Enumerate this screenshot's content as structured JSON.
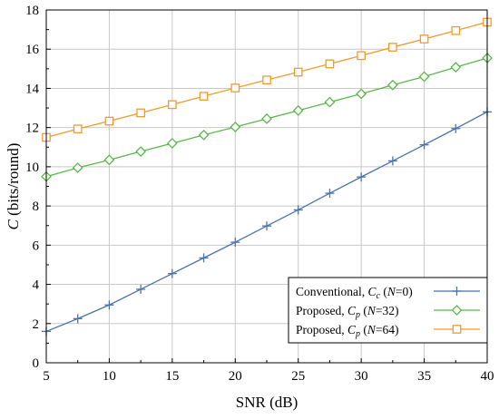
{
  "chart_data": {
    "type": "line",
    "title": "",
    "xlabel": "SNR (dB)",
    "ylabel": {
      "italic": "C",
      "rest": " (bits/round)"
    },
    "xlim": [
      5,
      40
    ],
    "ylim": [
      0,
      18
    ],
    "xticks": [
      "5",
      "10",
      "15",
      "20",
      "25",
      "30",
      "35",
      "40"
    ],
    "yticks": [
      "0",
      "2",
      "4",
      "6",
      "8",
      "10",
      "12",
      "14",
      "16",
      "18"
    ],
    "grid": true,
    "legend_position": "bottom-right",
    "x": [
      5,
      7.5,
      10,
      12.5,
      15,
      17.5,
      20,
      22.5,
      25,
      27.5,
      30,
      32.5,
      35,
      37.5,
      40
    ],
    "series": [
      {
        "name": "Conventional, C_c (N=0)",
        "legend": {
          "prefix": "Conventional, ",
          "sym": "C",
          "sub": "c",
          "paren_open": " (",
          "n": "N",
          "eq": "=0)"
        },
        "color": "#4a72b0",
        "marker": "plus",
        "values": [
          1.6,
          2.25,
          2.95,
          3.75,
          4.55,
          5.35,
          6.15,
          6.98,
          7.8,
          8.65,
          9.48,
          10.3,
          11.12,
          11.95,
          12.8
        ]
      },
      {
        "name": "Proposed, C_p (N=32)",
        "legend": {
          "prefix": "Proposed, ",
          "sym": "C",
          "sub": "p",
          "paren_open": " (",
          "n": "N",
          "eq": "=32)"
        },
        "color": "#5ab84a",
        "marker": "diamond",
        "values": [
          9.5,
          9.95,
          10.35,
          10.78,
          11.2,
          11.62,
          12.03,
          12.45,
          12.87,
          13.3,
          13.72,
          14.17,
          14.6,
          15.08,
          15.55
        ]
      },
      {
        "name": "Proposed, C_p (N=64)",
        "legend": {
          "prefix": "Proposed, ",
          "sym": "C",
          "sub": "p",
          "paren_open": " (",
          "n": "N",
          "eq": "=64)"
        },
        "color": "#f39a2c",
        "marker": "square",
        "values": [
          11.5,
          11.93,
          12.33,
          12.75,
          13.17,
          13.6,
          14.02,
          14.43,
          14.83,
          15.25,
          15.67,
          16.1,
          16.52,
          16.95,
          17.38
        ]
      }
    ]
  }
}
